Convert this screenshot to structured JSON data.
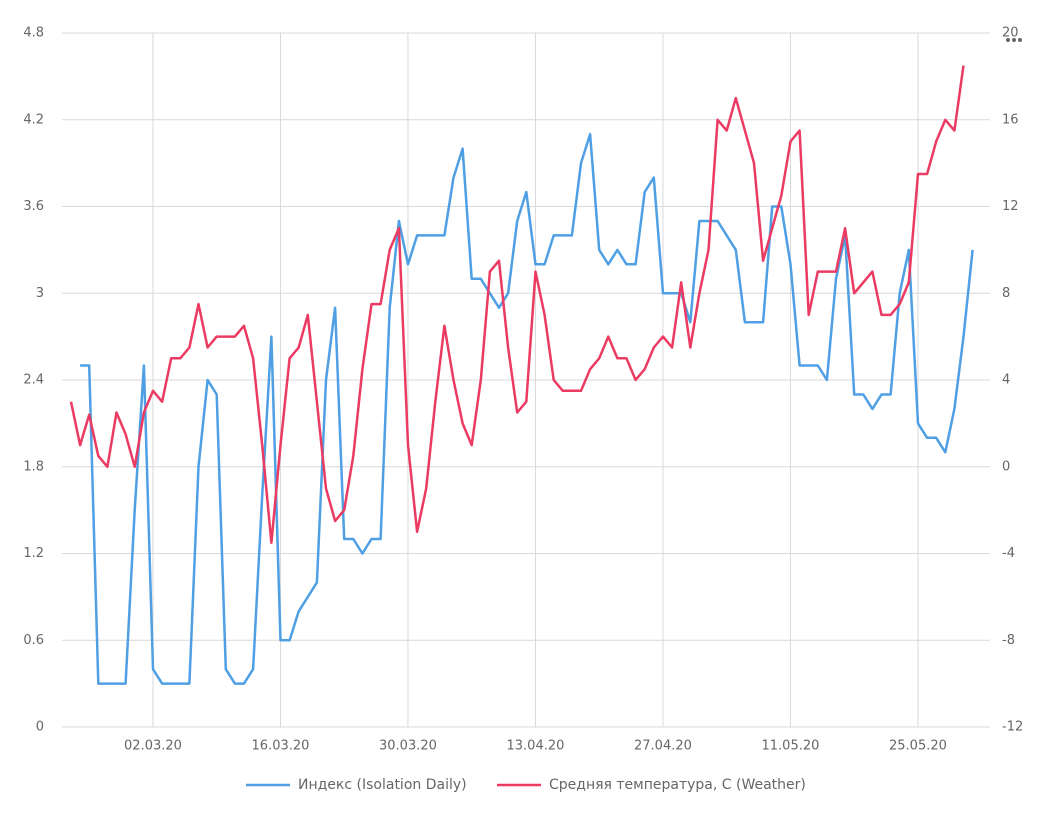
{
  "chart_data": {
    "type": "line",
    "categories": [
      null,
      null,
      null,
      null,
      null,
      null,
      null,
      null,
      null,
      "02.03.20",
      null,
      null,
      null,
      null,
      null,
      null,
      null,
      null,
      null,
      null,
      null,
      null,
      null,
      "16.03.20",
      null,
      null,
      null,
      null,
      null,
      null,
      null,
      null,
      null,
      null,
      null,
      null,
      null,
      "30.03.20",
      null,
      null,
      null,
      null,
      null,
      null,
      null,
      null,
      null,
      null,
      null,
      null,
      null,
      "13.04.20",
      null,
      null,
      null,
      null,
      null,
      null,
      null,
      null,
      null,
      null,
      null,
      null,
      null,
      "27.04.20",
      null,
      null,
      null,
      null,
      null,
      null,
      null,
      null,
      null,
      null,
      null,
      null,
      null,
      "11.05.20",
      null,
      null,
      null,
      null,
      null,
      null,
      null,
      null,
      null,
      null,
      null,
      null,
      null,
      "25.05.20",
      null,
      null,
      null,
      null,
      null,
      null
    ],
    "series": [
      {
        "name": "Индекс (Isolation Daily)",
        "color": "#4e9fe3",
        "axis": "y",
        "values": [
          null,
          2.5,
          2.5,
          0.3,
          0.3,
          0.3,
          0.3,
          1.5,
          2.5,
          0.4,
          0.3,
          0.3,
          0.3,
          0.3,
          1.8,
          2.4,
          2.3,
          0.4,
          0.3,
          0.3,
          0.4,
          1.6,
          2.7,
          0.6,
          0.6,
          0.8,
          0.9,
          1.0,
          2.4,
          2.9,
          1.3,
          1.3,
          1.2,
          1.3,
          1.3,
          2.9,
          3.5,
          3.2,
          3.4,
          3.4,
          3.4,
          3.4,
          3.8,
          4.0,
          3.1,
          3.1,
          3.0,
          2.9,
          3.0,
          3.5,
          3.7,
          3.2,
          3.2,
          3.4,
          3.4,
          3.4,
          3.9,
          4.1,
          3.3,
          3.2,
          3.3,
          3.2,
          3.2,
          3.7,
          3.8,
          3.0,
          3.0,
          3.0,
          2.8,
          3.5,
          3.5,
          3.5,
          3.4,
          3.3,
          2.8,
          2.8,
          2.8,
          3.6,
          3.6,
          3.2,
          2.5,
          2.5,
          2.5,
          2.4,
          3.1,
          3.4,
          2.3,
          2.3,
          2.2,
          2.3,
          2.3,
          3.0,
          3.3,
          2.1,
          2.0,
          2.0,
          1.9,
          2.2,
          2.7,
          3.3
        ]
      },
      {
        "name": "Средняя температура, C (Weather)",
        "color": "#eb3b62",
        "axis": "y2",
        "values": [
          3,
          1,
          2.4,
          0.5,
          0,
          2.5,
          1.5,
          0,
          2.5,
          3.5,
          3,
          5,
          5,
          5.5,
          7.5,
          5.5,
          6,
          6,
          6,
          6.5,
          5,
          1,
          -3.5,
          1,
          5,
          5.5,
          7,
          3,
          -1,
          -2.5,
          -2,
          0.5,
          4.5,
          7.5,
          7.5,
          10,
          11,
          1,
          -3,
          -1,
          3,
          6.5,
          4,
          2,
          1,
          4,
          9,
          9.5,
          5.5,
          2.5,
          3,
          9,
          7,
          4,
          3.5,
          3.5,
          3.5,
          4.5,
          5,
          6,
          5,
          5,
          4,
          4.5,
          5.5,
          6,
          5.5,
          8.5,
          5.5,
          8,
          10,
          16,
          15.5,
          17,
          15.5,
          14,
          9.5,
          11,
          12.5,
          15,
          15.5,
          7,
          9,
          9,
          9,
          11,
          8,
          8.5,
          9,
          7,
          7,
          7.5,
          8.5,
          13.5,
          13.5,
          15,
          16,
          15.5,
          18.5,
          null
        ]
      }
    ],
    "ylim": [
      0,
      4.8
    ],
    "yticks": [
      0,
      0.6,
      1.2,
      1.8,
      2.4,
      3,
      3.6,
      4.2,
      4.8
    ],
    "y2lim": [
      -12,
      20
    ],
    "y2ticks": [
      -12,
      -8,
      -4,
      0,
      4,
      8,
      12,
      16,
      20
    ],
    "grid": true,
    "legend": "bottom"
  }
}
